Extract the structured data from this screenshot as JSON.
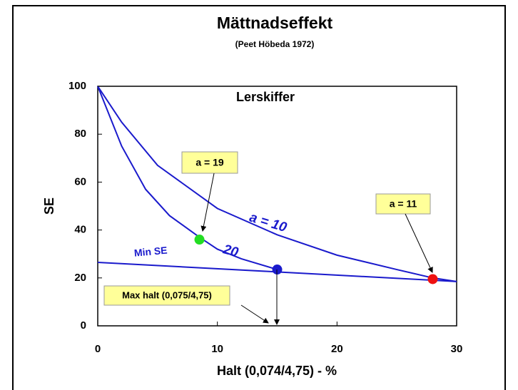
{
  "chart_data": {
    "type": "line",
    "title": "Mättnadseffekt",
    "subtitle": "(Peet Höbeda 1972)",
    "x_label": "Halt (0,074/4,75) - %",
    "y_label": "SE",
    "xlim": [
      0,
      30
    ],
    "xticks": [
      0,
      10,
      20,
      30
    ],
    "ylim": [
      0,
      100
    ],
    "yticks": [
      0,
      20,
      40,
      60,
      80,
      100
    ],
    "series": [
      {
        "color": "#1a1acc",
        "x": [
          0,
          2,
          5,
          10,
          15,
          20,
          25,
          28,
          30
        ],
        "values": [
          100,
          85,
          67,
          49,
          38,
          29.5,
          23.5,
          20,
          18.5
        ]
      },
      {
        "color": "#1a1acc",
        "x": [
          0,
          2,
          4,
          6,
          8.5,
          10,
          12,
          15
        ],
        "values": [
          100,
          75,
          57,
          46,
          37,
          32,
          28,
          23.5
        ]
      },
      {
        "color": "#1a1acc",
        "x": [
          0,
          30
        ],
        "values": [
          26.5,
          18.5
        ]
      }
    ],
    "points": {
      "x": [
        8.5,
        15,
        28
      ],
      "values": [
        36,
        23.5,
        19.5
      ],
      "colors": [
        "#22dd22",
        "#1a1acc",
        "#ee1111"
      ]
    },
    "annotations": [
      "Lerskiffer",
      "a = 19",
      "a = 11",
      "a = 10",
      "20",
      "Min SE",
      "Max halt (0,075/4,75)"
    ]
  }
}
